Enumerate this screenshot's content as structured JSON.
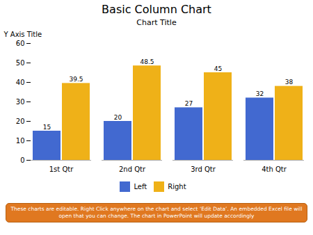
{
  "chart_data": {
    "type": "bar",
    "title": "Basic Column Chart",
    "subtitle": "Chart Title",
    "categories": [
      "1st Qtr",
      "2nd Qtr",
      "3rd Qtr",
      "4th Qtr"
    ],
    "series": [
      {
        "name": "Left",
        "values": [
          15,
          20,
          27,
          32
        ]
      },
      {
        "name": "Right",
        "values": [
          39.5,
          48.5,
          45,
          38
        ]
      }
    ],
    "ylabel": "Y Axis Title",
    "ylim": [
      0,
      60
    ],
    "yticks": [
      0,
      10,
      20,
      30,
      40,
      50,
      60
    ],
    "grid": false,
    "data_labels": true,
    "legend": "bottom",
    "annotations": [
      "These charts are editable. Right Click anywhere on the chart and select ‘Edit Data’. An embedded Excel file will",
      "open that you can change. The chart in PowerPoint will update accordingly"
    ]
  }
}
